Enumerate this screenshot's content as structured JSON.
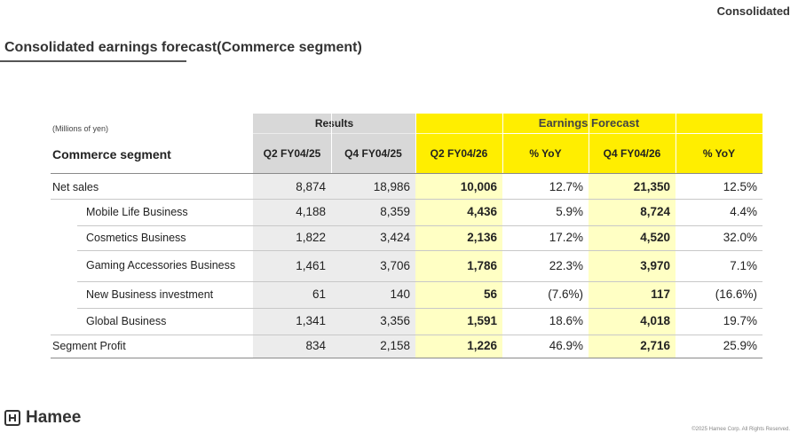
{
  "header": {
    "corner_label": "Consolidated",
    "title": "Consolidated earnings forecast(Commerce segment)"
  },
  "table": {
    "unit_label": "(Millions of yen)",
    "segment_label": "Commerce segment",
    "group_results": "Results",
    "group_forecast": "Earnings Forecast",
    "columns": [
      "Q2 FY04/25",
      "Q4 FY04/25",
      "Q2 FY04/26",
      "% YoY",
      "Q4 FY04/26",
      "% YoY"
    ],
    "rows": [
      {
        "label": "Net sales",
        "values": [
          "8,874",
          "18,986",
          "10,006",
          "12.7%",
          "21,350",
          "12.5%"
        ]
      },
      {
        "label": "Mobile Life Business",
        "values": [
          "4,188",
          "8,359",
          "4,436",
          "5.9%",
          "8,724",
          "4.4%"
        ]
      },
      {
        "label": "Cosmetics Business",
        "values": [
          "1,822",
          "3,424",
          "2,136",
          "17.2%",
          "4,520",
          "32.0%"
        ]
      },
      {
        "label": "Gaming Accessories Business",
        "values": [
          "1,461",
          "3,706",
          "1,786",
          "22.3%",
          "3,970",
          "7.1%"
        ]
      },
      {
        "label": "New Business investment",
        "values": [
          "61",
          "140",
          "56",
          "(7.6%)",
          "117",
          "(16.6%)"
        ]
      },
      {
        "label": "Global Business",
        "values": [
          "1,341",
          "3,356",
          "1,591",
          "18.6%",
          "4,018",
          "19.7%"
        ]
      },
      {
        "label": "Segment Profit",
        "values": [
          "834",
          "2,158",
          "1,226",
          "46.9%",
          "2,716",
          "25.9%"
        ]
      }
    ]
  },
  "footer": {
    "logo_text": "Hamee",
    "logo_icon": "hamee-logo-icon",
    "copyright": "©2025 Hamee Corp. All Rights Reserved."
  },
  "colors": {
    "forecast_header": "#ffee00",
    "forecast_highlight": "#ffffc4",
    "results_header": "#d8d8d8",
    "results_body": "#ececec"
  }
}
